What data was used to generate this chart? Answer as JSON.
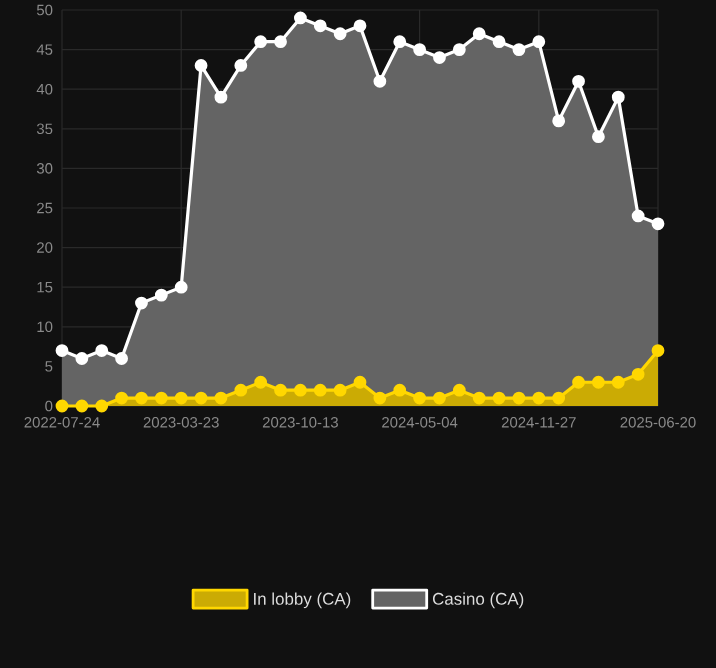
{
  "chart_data": {
    "type": "area",
    "categories": [
      "2022-07-24",
      null,
      null,
      null,
      null,
      null,
      "2023-03-23",
      null,
      null,
      null,
      null,
      null,
      "2023-10-13",
      null,
      null,
      null,
      null,
      null,
      "2024-05-04",
      null,
      null,
      null,
      null,
      null,
      "2024-11-27",
      null,
      null,
      null,
      null,
      null,
      "2025-06-20"
    ],
    "series": [
      {
        "name": "In lobby (CA)",
        "color": "#ffd700",
        "values": [
          0,
          0,
          0,
          1,
          1,
          1,
          1,
          1,
          1,
          2,
          3,
          2,
          2,
          2,
          2,
          3,
          1,
          2,
          1,
          1,
          2,
          1,
          1,
          1,
          1,
          1,
          3,
          3,
          3,
          4,
          7
        ]
      },
      {
        "name": "Casino (CA)",
        "color": "#ffffff",
        "values": [
          7,
          6,
          7,
          6,
          13,
          14,
          15,
          43,
          39,
          43,
          46,
          46,
          49,
          48,
          47,
          48,
          41,
          46,
          45,
          44,
          45,
          47,
          46,
          45,
          46,
          36,
          41,
          34,
          39,
          24,
          23
        ]
      }
    ],
    "ylim": [
      0,
      50
    ],
    "yticks": [
      0,
      5,
      10,
      15,
      20,
      25,
      30,
      35,
      40,
      45,
      50
    ],
    "grid": true,
    "legend": "bottom",
    "marker": "circle"
  }
}
